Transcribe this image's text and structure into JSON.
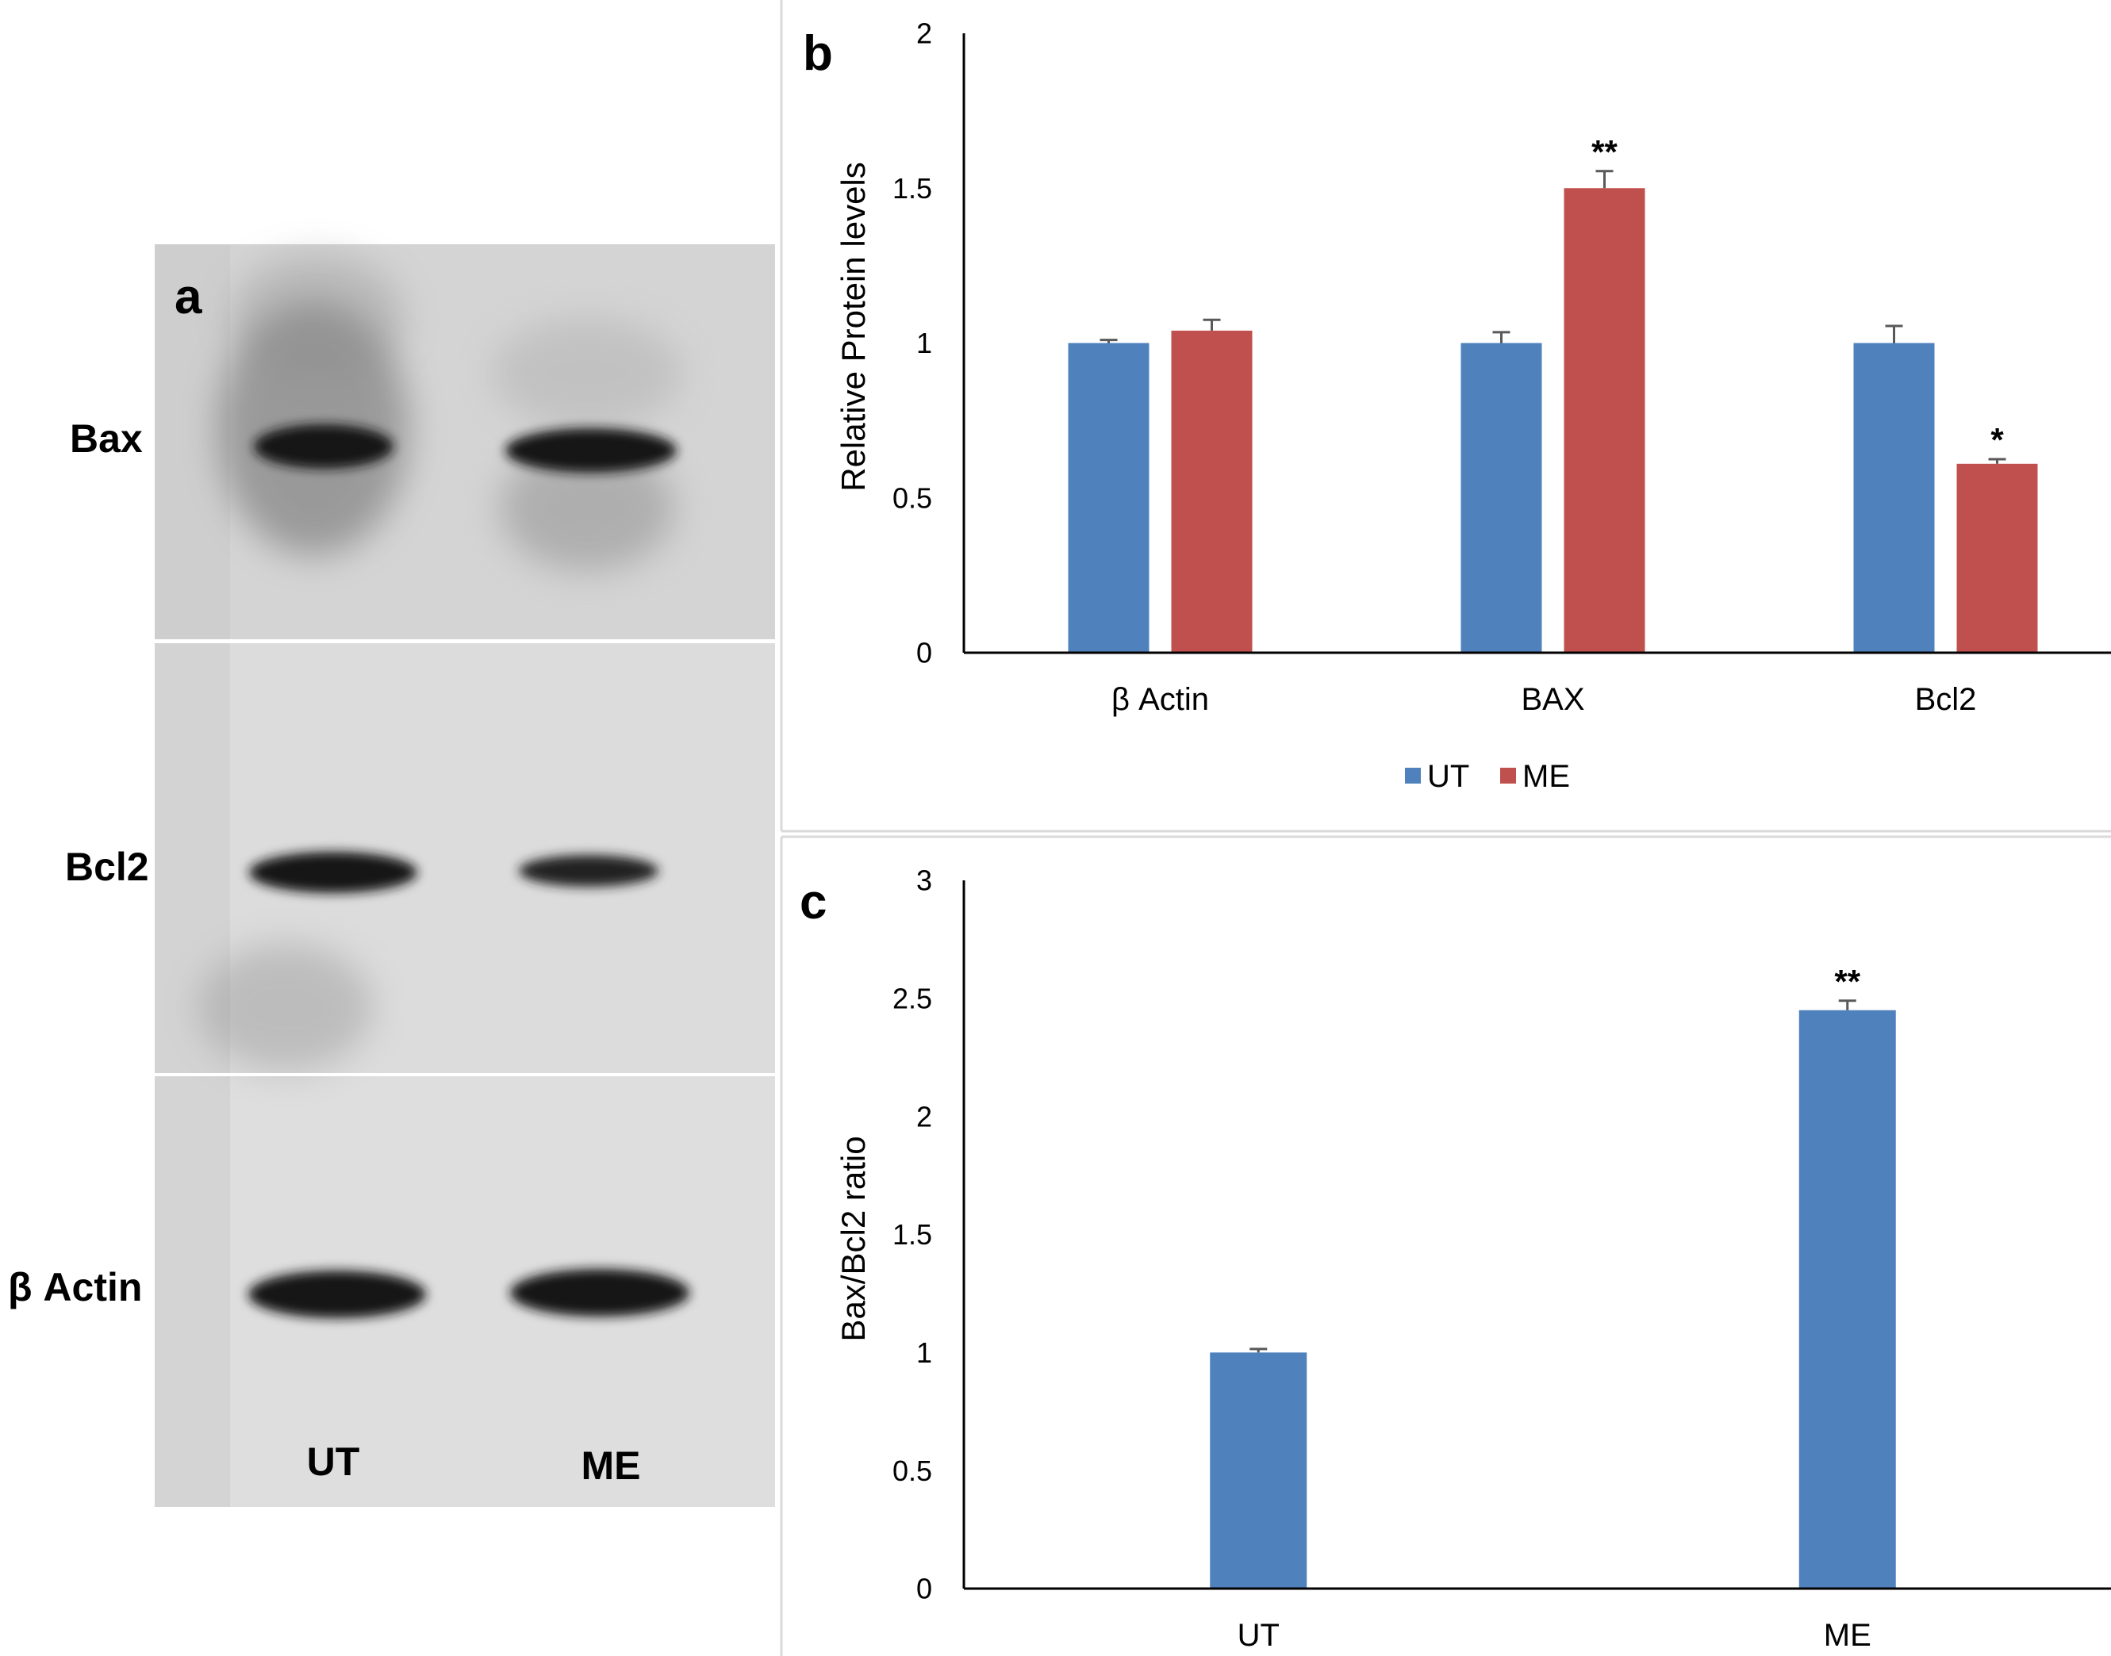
{
  "panel_a": {
    "label": "a",
    "rows": [
      "Bax",
      "Bcl2",
      "β Actin"
    ],
    "lanes": [
      "UT",
      "ME"
    ]
  },
  "chart_data": [
    {
      "panel": "b",
      "type": "bar",
      "title": "",
      "xlabel": "",
      "ylabel": "Relative Protein levels",
      "ylim": [
        0,
        2
      ],
      "yticks": [
        "0",
        "0.5",
        "1",
        "1.5",
        "2"
      ],
      "categories": [
        "β Actin",
        "BAX",
        "Bcl2"
      ],
      "series": [
        {
          "name": "UT",
          "color": "#4F81BD",
          "values": [
            1.0,
            1.0,
            1.0
          ],
          "errors": [
            0.01,
            0.035,
            0.055
          ],
          "annotations": [
            "",
            "",
            ""
          ]
        },
        {
          "name": "ME",
          "color": "#C0504D",
          "values": [
            1.04,
            1.5,
            0.61
          ],
          "errors": [
            0.035,
            0.055,
            0.015
          ],
          "annotations": [
            "",
            "**",
            "*"
          ]
        }
      ],
      "legend": "bottom-center"
    },
    {
      "panel": "c",
      "type": "bar",
      "title": "",
      "xlabel": "",
      "ylabel": "Bax/Bcl2 ratio",
      "ylim": [
        0,
        3
      ],
      "yticks": [
        "0",
        "0.5",
        "1",
        "1.5",
        "2",
        "2.5",
        "3"
      ],
      "categories": [
        "UT",
        "ME"
      ],
      "series": [
        {
          "name": "Bax/Bcl2",
          "color": "#4F81BD",
          "values": [
            1.0,
            2.45
          ],
          "errors": [
            0.015,
            0.04
          ],
          "annotations": [
            "",
            "**"
          ]
        }
      ]
    }
  ]
}
